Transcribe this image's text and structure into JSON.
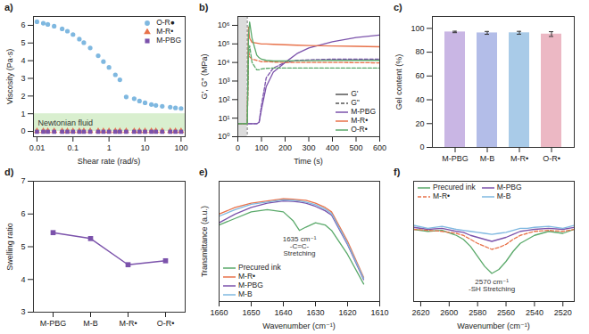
{
  "chart_data": [
    {
      "type": "scatter",
      "panel_label": "a)",
      "x_label": "Shear rate (rad/s)",
      "y_label": "Viscosity (Pa·s)",
      "log": "x",
      "xlim": [
        0.008,
        130
      ],
      "xticks": [
        0.01,
        0.1,
        1,
        10,
        100
      ],
      "ylim": [
        -0.3,
        6.5
      ],
      "yticks": [
        0,
        1,
        2,
        3,
        4,
        5,
        6
      ],
      "legend": "top-right",
      "band": {
        "label": "Newtonian fluid",
        "from": 0,
        "to": 1,
        "color": "#d9efcf"
      },
      "x": [
        0.01,
        0.015,
        0.02,
        0.03,
        0.05,
        0.07,
        0.1,
        0.15,
        0.2,
        0.3,
        0.5,
        0.7,
        1,
        1.5,
        2,
        3,
        5,
        7,
        10,
        15,
        20,
        30,
        50,
        70,
        100
      ],
      "series": [
        {
          "name": "O-R●",
          "color": "#7fb8e0",
          "marker": "circle",
          "values": [
            6.2,
            6.12,
            6.05,
            5.95,
            5.8,
            5.67,
            5.48,
            5.22,
            5.02,
            4.72,
            4.28,
            3.95,
            3.62,
            3.2,
            2.92,
            1.95,
            1.85,
            1.72,
            1.62,
            1.52,
            1.47,
            1.42,
            1.37,
            1.33,
            1.3
          ]
        },
        {
          "name": "M-R•",
          "color": "#e8724a",
          "marker": "triangle",
          "values": [
            0.02,
            0.02,
            0.02,
            0.02,
            0.02,
            0.02,
            0.02,
            0.02,
            0.02,
            0.02,
            0.02,
            0.02,
            0.02,
            0.02,
            0.02,
            0.02,
            0.02,
            0.02,
            0.02,
            0.02,
            0.02,
            0.02,
            0.02,
            0.02,
            0.02
          ]
        },
        {
          "name": "M-PBG",
          "color": "#7b52ab",
          "marker": "square",
          "values": [
            -0.02,
            -0.02,
            -0.02,
            -0.02,
            -0.02,
            -0.02,
            -0.02,
            -0.02,
            -0.02,
            -0.02,
            -0.02,
            -0.02,
            -0.02,
            -0.02,
            -0.02,
            -0.02,
            -0.02,
            -0.02,
            -0.02,
            -0.02,
            -0.02,
            -0.02,
            -0.02,
            -0.02,
            -0.02
          ]
        }
      ]
    },
    {
      "type": "line",
      "panel_label": "b)",
      "x_label": "Time (s)",
      "y_label": "G', G'' (MPa)",
      "log": "y",
      "xlim": [
        0,
        600
      ],
      "xticks": [
        0,
        100,
        200,
        300,
        400,
        500,
        600
      ],
      "ylim": [
        1,
        3000000
      ],
      "yticks": [
        {
          "value": 1,
          "label": "10⁰"
        },
        {
          "value": 10,
          "label": "10¹"
        },
        {
          "value": 100,
          "label": "10²"
        },
        {
          "value": 1000,
          "label": "10³"
        },
        {
          "value": 10000,
          "label": "10⁴"
        },
        {
          "value": 100000,
          "label": "10⁵"
        },
        {
          "value": 1000000,
          "label": "10⁶"
        }
      ],
      "legend": "bottom-right",
      "shaded_x": [
        0,
        40
      ],
      "x": [
        0,
        20,
        40,
        45,
        50,
        60,
        80,
        90,
        100,
        120,
        150,
        200,
        250,
        300,
        400,
        500,
        600
      ],
      "series": [
        {
          "name": "M-PBG",
          "modulus": "G'",
          "line_style": "solid",
          "color": "#7b52ab",
          "values": [
            5,
            5,
            5,
            5,
            5,
            5,
            5,
            6,
            30,
            500,
            3000,
            10000,
            30000,
            60000,
            130000,
            220000,
            300000
          ]
        },
        {
          "name": "M-PBG",
          "modulus": "G''",
          "line_style": "dashed",
          "color": "#7b52ab",
          "values": [
            5,
            5,
            5,
            5,
            5,
            5,
            5,
            6,
            50,
            1500,
            5000,
            10000,
            13000,
            14000,
            15000,
            15000,
            15000
          ]
        },
        {
          "name": "M-R•",
          "modulus": "G'",
          "line_style": "solid",
          "color": "#e8724a",
          "values": [
            5,
            5,
            5,
            800000,
            200000,
            120000,
            110000,
            105000,
            100000,
            98000,
            95000,
            90000,
            85000,
            82000,
            78000,
            74000,
            70000
          ]
        },
        {
          "name": "M-R•",
          "modulus": "G''",
          "line_style": "dashed",
          "color": "#e8724a",
          "values": [
            5,
            5,
            5,
            50000,
            20000,
            15000,
            13000,
            12000,
            11000,
            11000,
            10500,
            10000,
            10000,
            10000,
            10000,
            9800,
            9500
          ]
        },
        {
          "name": "O-R•",
          "modulus": "G'",
          "line_style": "solid",
          "color": "#5aa96a",
          "values": [
            5,
            5,
            5,
            300000,
            1500000,
            200000,
            25000,
            18000,
            15000,
            13000,
            12000,
            12000,
            12500,
            12500,
            13000,
            13000,
            13000
          ]
        },
        {
          "name": "O-R•",
          "modulus": "G''",
          "line_style": "dashed",
          "color": "#5aa96a",
          "values": [
            5,
            5,
            5,
            30000,
            80000,
            10000,
            4000,
            4000,
            4500,
            4800,
            5000,
            5000,
            5000,
            5000,
            5000,
            5000,
            5000
          ]
        }
      ]
    },
    {
      "type": "bar",
      "panel_label": "c)",
      "y_label": "Gel content (%)",
      "categories": [
        "M-PBG",
        "M-B",
        "M-R•",
        "O-R•"
      ],
      "values": [
        97,
        96.2,
        96.3,
        95.2
      ],
      "errors": [
        0.6,
        1.2,
        1.2,
        2.0
      ],
      "colors": [
        "#c9b6e4",
        "#b3bde8",
        "#a9cbe8",
        "#ecb8c4"
      ],
      "ylim": [
        0,
        110
      ],
      "yticks": [
        0,
        20,
        40,
        60,
        80,
        100
      ]
    },
    {
      "type": "line",
      "panel_label": "d)",
      "y_label": "Swelling ratio",
      "categories": [
        "M-PBG",
        "M-B",
        "M-R•",
        "O-R•"
      ],
      "values": [
        5.43,
        5.25,
        4.45,
        4.57
      ],
      "color": "#7b52ab",
      "marker": "square",
      "ylim": [
        3,
        7
      ],
      "yticks": [
        3,
        4,
        5,
        6,
        7
      ]
    },
    {
      "type": "line",
      "panel_label": "e)",
      "x_label": "Wavenumber (cm⁻¹)",
      "y_label": "Transmittance (a.u.)",
      "tick_labels": "x",
      "xlim": [
        1660,
        1610
      ],
      "xticks": [
        1660,
        1650,
        1640,
        1630,
        1620,
        1610
      ],
      "ylim": [
        -10,
        100
      ],
      "legend": "bottom-left",
      "annotations": [
        {
          "x": 1635,
          "y": 50,
          "text": "1635 cm⁻¹\n-C=C-\nStretching"
        }
      ],
      "x": [
        1660,
        1655,
        1650,
        1645,
        1640,
        1637,
        1635,
        1633,
        1630,
        1627,
        1625,
        1620,
        1615
      ],
      "series": [
        {
          "name": "Precured ink",
          "color": "#5aa96a",
          "line_style": "solid",
          "values": [
            60,
            66,
            72,
            74,
            72,
            64,
            55,
            58,
            62,
            60,
            55,
            33,
            6
          ]
        },
        {
          "name": "M-R•",
          "color": "#e8724a",
          "line_style": "solid",
          "values": [
            70,
            76,
            80,
            82,
            84,
            83.5,
            83,
            82.5,
            80,
            76,
            72,
            45,
            12
          ]
        },
        {
          "name": "M-PBG",
          "color": "#7b52ab",
          "line_style": "solid",
          "values": [
            62,
            70,
            76,
            80,
            82,
            81.5,
            81,
            80,
            77,
            73,
            69,
            42,
            10
          ]
        },
        {
          "name": "M-B",
          "color": "#7fb8e0",
          "line_style": "solid",
          "values": [
            68,
            74,
            79,
            81,
            83,
            82.5,
            82,
            81,
            78.5,
            74.5,
            70.5,
            43,
            11
          ]
        }
      ]
    },
    {
      "type": "line",
      "panel_label": "f)",
      "x_label": "Wavenumber (cm⁻¹)",
      "tick_labels": "x",
      "xlim": [
        2625,
        2512
      ],
      "xticks": [
        2620,
        2600,
        2580,
        2560,
        2540,
        2520
      ],
      "ylim": [
        0,
        120
      ],
      "legend": "top-left",
      "annotations": [
        {
          "x": 2570,
          "y": 22,
          "text": "2570 cm⁻¹\n-SH Stretching"
        }
      ],
      "x": [
        2625,
        2615,
        2605,
        2595,
        2590,
        2585,
        2580,
        2575,
        2570,
        2565,
        2560,
        2555,
        2550,
        2545,
        2540,
        2530,
        2520,
        2512
      ],
      "series": [
        {
          "name": "Precured ink",
          "color": "#5aa96a",
          "line_style": "solid",
          "values": [
            72,
            70,
            71,
            66,
            62,
            55,
            45,
            35,
            28,
            32,
            40,
            50,
            58,
            62,
            66,
            70,
            68,
            72
          ]
        },
        {
          "name": "M-PBG",
          "color": "#7b52ab",
          "line_style": "solid",
          "values": [
            74,
            72,
            73,
            70,
            69,
            66,
            64,
            62,
            60,
            62,
            64,
            67,
            70,
            71,
            72,
            73,
            72,
            74
          ]
        },
        {
          "name": "M-R•",
          "color": "#e8724a",
          "line_style": "dashed",
          "values": [
            72,
            71,
            70,
            68,
            66,
            62,
            58,
            55,
            52,
            54,
            57,
            62,
            66,
            68,
            70,
            71,
            70,
            72
          ]
        },
        {
          "name": "M-B",
          "color": "#7fb8e0",
          "line_style": "solid",
          "values": [
            76,
            73,
            75,
            72,
            71,
            70,
            69,
            68,
            67,
            68,
            69,
            71,
            73,
            73,
            74,
            75,
            73,
            76
          ]
        }
      ]
    }
  ]
}
